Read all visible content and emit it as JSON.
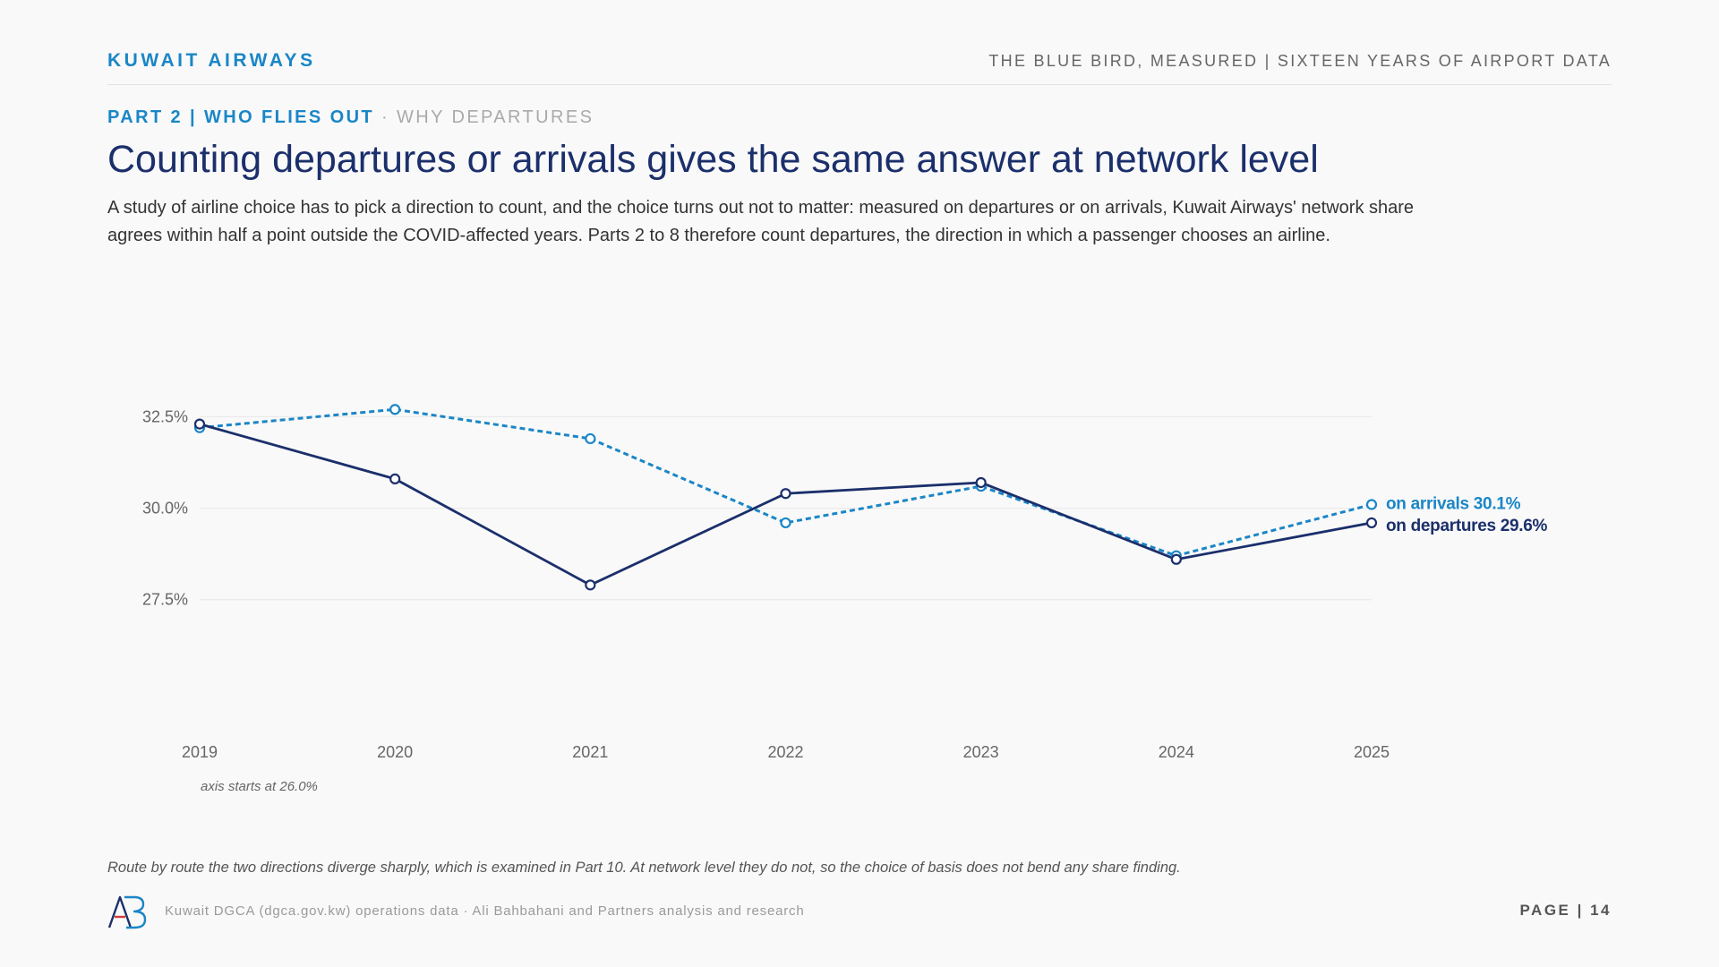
{
  "header": {
    "brand": "KUWAIT AIRWAYS",
    "report_title": "THE BLUE BIRD, MEASURED | SIXTEEN YEARS OF AIRPORT DATA"
  },
  "section": {
    "part": "PART 2 | WHO FLIES OUT",
    "separator": " · ",
    "sub": "WHY DEPARTURES"
  },
  "headline": "Counting departures or arrivals gives the same answer at network level",
  "lede": "A study of airline choice has to pick a direction to count, and the choice turns out not to matter: measured on departures or on arrivals, Kuwait Airways' network share agrees within half a point outside the COVID-affected years. Parts 2 to 8 therefore count departures, the direction in which a passenger chooses an airline.",
  "chart_data": {
    "type": "line",
    "x": [
      "2019",
      "2020",
      "2021",
      "2022",
      "2023",
      "2024",
      "2025"
    ],
    "ylim": [
      26.0,
      33.0
    ],
    "yticks": [
      27.5,
      30.0,
      32.5
    ],
    "ytick_labels": [
      "27.5%",
      "30.0%",
      "32.5%"
    ],
    "grid": true,
    "axis_note": "axis starts at 26.0%",
    "series": [
      {
        "name": "on arrivals",
        "end_label": "on arrivals 30.1%",
        "values": [
          32.2,
          32.7,
          31.9,
          29.6,
          30.6,
          28.7,
          30.1
        ],
        "color": "#1a86c7",
        "style": "dashed"
      },
      {
        "name": "on departures",
        "end_label": "on departures 29.6%",
        "values": [
          32.3,
          30.8,
          27.9,
          30.4,
          30.7,
          28.6,
          29.6
        ],
        "color": "#1b2f6b",
        "style": "solid"
      }
    ]
  },
  "footnote": "Route by route the two directions diverge sharply, which is examined in Part 10. At network level they do not, so the choice of basis does not bend any share finding.",
  "footer": {
    "source": "Kuwait DGCA (dgca.gov.kw) operations data · Ali Bahbahani and Partners analysis and research",
    "page": "PAGE | 14"
  },
  "colors": {
    "accent": "#1a86c7",
    "navy": "#1b2f6b",
    "logo_red": "#d43a3a"
  }
}
